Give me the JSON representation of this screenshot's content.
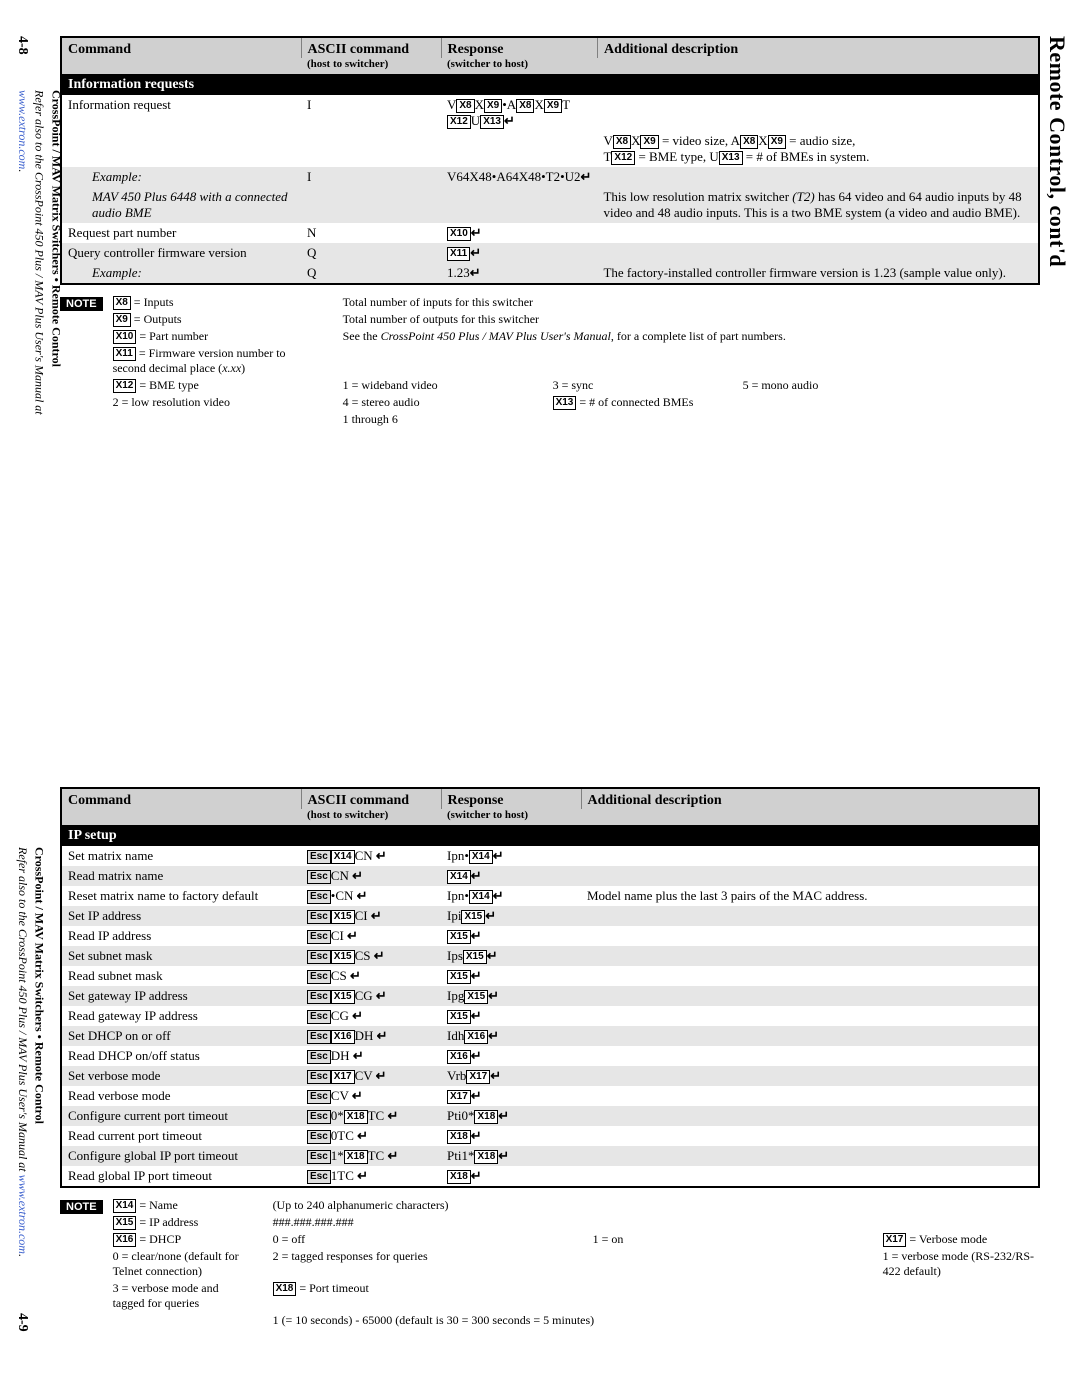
{
  "page_top": {
    "page_num": "4-8",
    "right_header": "Remote Control, cont'd",
    "left_vertical_bold": "CrossPoint / MAV Matrix Switchers • Remote Control",
    "left_vertical_ital": "Refer also to the CrossPoint 450 Plus / MAV Plus User's Manual at ",
    "left_vertical_link": "www.extron.com",
    "table": {
      "headers": {
        "cmd": "Command",
        "asc": "ASCII command",
        "asc_sub": "(host to switcher)",
        "resp": "Response",
        "resp_sub": "(switcher to host)",
        "desc": "Additional description"
      },
      "section": "Information requests",
      "rows": [
        {
          "c0": "Information request",
          "c1": "I",
          "c2_html": "V<span class='ph'>X8</span>X<span class='ph'>X9</span>•A<span class='ph'>X8</span>X<span class='ph'>X9</span>T<span class='ph'>X12</span>U<span class='ph'>X13</span><span class='ret'></span>",
          "c3": ""
        },
        {
          "c0": "",
          "c1": "",
          "c2": "",
          "c3_html": "V<span class='ph'>X8</span>X<span class='ph'>X9</span> = video size, A<span class='ph'>X8</span>X<span class='ph'>X9</span> = audio size,<br>T<span class='ph'>X12</span> = BME type, U<span class='ph'>X13</span> = # of BMEs in system."
        },
        {
          "gray": true,
          "italic_c0": true,
          "c0": "Example:",
          "c1": "I",
          "c2_html": "V64X48•A64X48•T2•U2<span class='ret'></span>",
          "c3": ""
        },
        {
          "gray": true,
          "italic_c0": true,
          "c0": "MAV 450 Plus 6448 with a connected audio BME",
          "c1": "",
          "c2": "",
          "c3_html": "This low resolution matrix switcher <span class='em'>(T2)</span> has 64 video and 64 audio inputs by 48 video and 48 audio inputs. This is a two BME system (a video and audio BME)."
        },
        {
          "c0": "Request part number",
          "c1": "N",
          "c2_html": "<span class='ph'>X10</span><span class='ret'></span>",
          "c3": ""
        },
        {
          "gray": true,
          "c0": "Query controller firmware version",
          "c1": "Q",
          "c2_html": "<span class='ph'>X11</span><span class='ret'></span>",
          "c3": ""
        },
        {
          "gray": true,
          "italic_c0": true,
          "c0": "Example:",
          "c1": "Q",
          "c2_html": "1.23<span class='ret'></span>",
          "c3": "The factory-installed controller firmware version is 1.23 (sample value only)."
        }
      ]
    },
    "note": {
      "label": "NOTE",
      "rows": [
        [
          "X8",
          " = Inputs",
          "Total number of inputs for this switcher",
          "",
          "",
          ""
        ],
        [
          "X9",
          " = Outputs",
          "Total number of outputs for this switcher",
          "",
          "",
          ""
        ],
        [
          "X10",
          " = Part number",
          "See the <span class='em'>CrossPoint 450 Plus / MAV Plus User's Manual</span>, for a complete list of part numbers.",
          "",
          "",
          ""
        ],
        [
          "X11",
          " = Firmware version number to second decimal place (<span class='em'>x.xx</span>)",
          "",
          "",
          "",
          ""
        ],
        [
          "X12",
          " = BME type",
          "1 = wideband video",
          "3 = sync",
          "5 = mono audio",
          ""
        ],
        [
          "",
          "",
          "2 = low resolution video",
          "4 = stereo audio",
          "",
          ""
        ],
        [
          "X13",
          " = # of connected BMEs",
          "1 through 6",
          "",
          "",
          ""
        ]
      ]
    }
  },
  "page_bottom": {
    "page_num": "4-9",
    "left_vertical_bold": "CrossPoint / MAV Matrix Switchers • Remote Control",
    "left_vertical_ital": "Refer also to the CrossPoint 450 Plus / MAV Plus User's Manual at ",
    "left_vertical_link": "www.extron.com",
    "table": {
      "headers": {
        "cmd": "Command",
        "asc": "ASCII command",
        "asc_sub": "(host to switcher)",
        "resp": "Response",
        "resp_sub": "(switcher to host)",
        "desc": "Additional description"
      },
      "section": "IP setup",
      "rows": [
        {
          "c0": "Set matrix name",
          "c1_html": "<span class='esc'>Esc</span><span class='ph'>X14</span>CN <span class='ret'></span>",
          "c2_html": "Ipn•<span class='ph'>X14</span><span class='ret'></span>",
          "c3": ""
        },
        {
          "gray": true,
          "c0": "Read matrix name",
          "c1_html": "<span class='esc'>Esc</span>CN <span class='ret'></span>",
          "c2_html": "<span class='ph'>X14</span><span class='ret'></span>",
          "c3": ""
        },
        {
          "c0": "Reset matrix name to factory default",
          "c1_html": "<span class='esc'>Esc</span>•CN <span class='ret'></span>",
          "c2_html": "Ipn•<span class='ph'>X14</span><span class='ret'></span>",
          "c3": "Model name plus the last 3 pairs of the MAC address."
        },
        {
          "gray": true,
          "c0": "Set IP address",
          "c1_html": "<span class='esc'>Esc</span><span class='ph'>X15</span>CI <span class='ret'></span>",
          "c2_html": "Ipi<span class='ph'>X15</span><span class='ret'></span>",
          "c3": ""
        },
        {
          "c0": "Read IP address",
          "c1_html": "<span class='esc'>Esc</span>CI <span class='ret'></span>",
          "c2_html": "<span class='ph'>X15</span><span class='ret'></span>",
          "c3": ""
        },
        {
          "gray": true,
          "c0": "Set subnet mask",
          "c1_html": "<span class='esc'>Esc</span><span class='ph'>X15</span>CS <span class='ret'></span>",
          "c2_html": "Ips<span class='ph'>X15</span><span class='ret'></span>",
          "c3": ""
        },
        {
          "c0": "Read subnet mask",
          "c1_html": "<span class='esc'>Esc</span>CS <span class='ret'></span>",
          "c2_html": "<span class='ph'>X15</span><span class='ret'></span>",
          "c3": ""
        },
        {
          "gray": true,
          "c0": "Set gateway IP address",
          "c1_html": "<span class='esc'>Esc</span><span class='ph'>X15</span>CG <span class='ret'></span>",
          "c2_html": "Ipg<span class='ph'>X15</span><span class='ret'></span>",
          "c3": ""
        },
        {
          "c0": "Read gateway IP address",
          "c1_html": "<span class='esc'>Esc</span>CG <span class='ret'></span>",
          "c2_html": "<span class='ph'>X15</span><span class='ret'></span>",
          "c3": ""
        },
        {
          "gray": true,
          "c0": "Set DHCP on or off",
          "c1_html": "<span class='esc'>Esc</span><span class='ph'>X16</span>DH <span class='ret'></span>",
          "c2_html": "Idh<span class='ph'>X16</span><span class='ret'></span>",
          "c3": ""
        },
        {
          "c0": "Read DHCP on/off status",
          "c1_html": "<span class='esc'>Esc</span>DH <span class='ret'></span>",
          "c2_html": "<span class='ph'>X16</span><span class='ret'></span>",
          "c3": ""
        },
        {
          "gray": true,
          "c0": "Set verbose mode",
          "c1_html": "<span class='esc'>Esc</span><span class='ph'>X17</span>CV <span class='ret'></span>",
          "c2_html": "Vrb<span class='ph'>X17</span><span class='ret'></span>",
          "c3": ""
        },
        {
          "c0": "Read verbose mode",
          "c1_html": "<span class='esc'>Esc</span>CV <span class='ret'></span>",
          "c2_html": "<span class='ph'>X17</span><span class='ret'></span>",
          "c3": ""
        },
        {
          "gray": true,
          "c0": "Configure current port timeout",
          "c1_html": "<span class='esc'>Esc</span>0*<span class='ph'>X18</span>TC <span class='ret'></span>",
          "c2_html": "Pti0*<span class='ph'>X18</span><span class='ret'></span>",
          "c3": ""
        },
        {
          "c0": "Read current port timeout",
          "c1_html": "<span class='esc'>Esc</span>0TC <span class='ret'></span>",
          "c2_html": "<span class='ph'>X18</span><span class='ret'></span>",
          "c3": ""
        },
        {
          "gray": true,
          "c0": "Configure global IP port timeout",
          "c1_html": "<span class='esc'>Esc</span>1*<span class='ph'>X18</span>TC <span class='ret'></span>",
          "c2_html": "Pti1*<span class='ph'>X18</span><span class='ret'></span>",
          "c3": ""
        },
        {
          "c0": "Read global IP port timeout",
          "c1_html": "<span class='esc'>Esc</span>1TC <span class='ret'></span>",
          "c2_html": "<span class='ph'>X18</span><span class='ret'></span>",
          "c3": ""
        }
      ]
    },
    "note": {
      "label": "NOTE",
      "rows": [
        [
          "X14",
          " = Name",
          "(Up to 240 alphanumeric characters)",
          "",
          "",
          ""
        ],
        [
          "X15",
          " = IP address",
          "###.###.###.###",
          "",
          "",
          ""
        ],
        [
          "X16",
          " = DHCP",
          "0 = off",
          "1 = on",
          "",
          ""
        ],
        [
          "X17",
          " = Verbose mode",
          "0 = clear/none (default for Telnet connection)",
          "2 = tagged responses for queries",
          "",
          ""
        ],
        [
          "",
          "",
          "1 = verbose mode (RS-232/RS-422 default)",
          "3 = verbose mode and tagged for queries",
          "",
          ""
        ],
        [
          "X18",
          " = Port timeout",
          "1 (= 10 seconds) - 65000 (default is 30 = 300 seconds = 5 minutes)",
          "",
          "",
          ""
        ]
      ]
    }
  }
}
